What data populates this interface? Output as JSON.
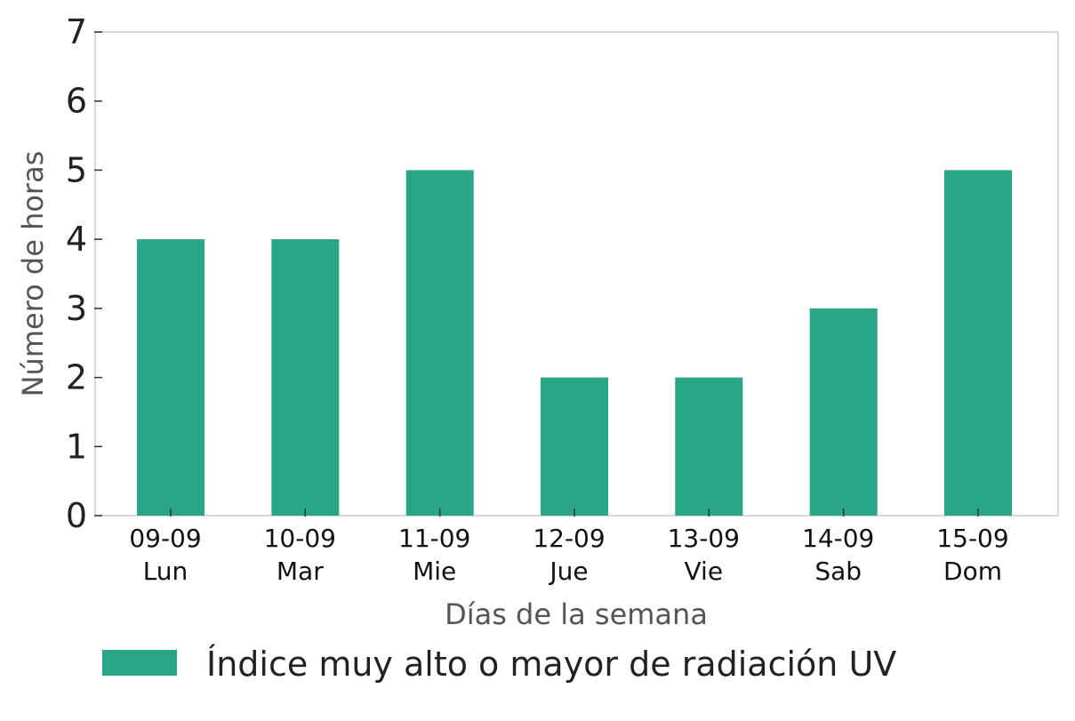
{
  "chart_data": {
    "type": "bar",
    "categories": [
      [
        "09-09",
        "Lun"
      ],
      [
        "10-09",
        "Mar"
      ],
      [
        "11-09",
        "Mie"
      ],
      [
        "12-09",
        "Jue"
      ],
      [
        "13-09",
        "Vie"
      ],
      [
        "14-09",
        "Sab"
      ],
      [
        "15-09",
        "Dom"
      ]
    ],
    "series": [
      {
        "name": "Índice muy alto o mayor de radiación UV",
        "values": [
          4,
          4,
          5,
          2,
          2,
          3,
          5
        ],
        "color": "#28a687"
      }
    ],
    "xlabel": "Días de la semana",
    "ylabel": "Número de horas",
    "ylim": [
      0,
      7
    ],
    "yticks": [
      0,
      1,
      2,
      3,
      4,
      5,
      6,
      7
    ],
    "grid": false,
    "legend_position": "bottom"
  }
}
